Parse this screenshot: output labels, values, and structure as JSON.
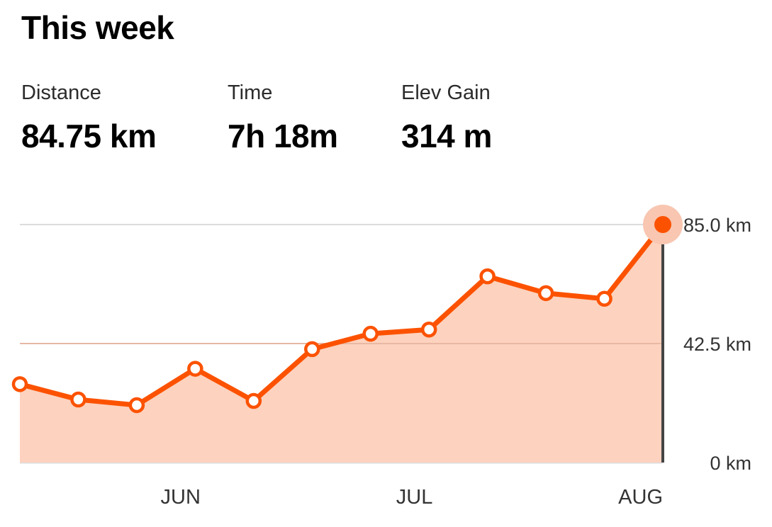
{
  "header": {
    "title": "This week"
  },
  "stats": [
    {
      "label": "Distance",
      "value": "84.75 km"
    },
    {
      "label": "Time",
      "value": "7h 18m"
    },
    {
      "label": "Elev Gain",
      "value": "314 m"
    }
  ],
  "colors": {
    "line": "#fc5200",
    "area": "#fdd2bf",
    "highlight_halo": "#f8c6b1",
    "grid": "#dcdcdc",
    "cursor": "#444444",
    "axis_text": "#333333"
  },
  "chart_data": {
    "type": "area",
    "title": "",
    "xlabel": "",
    "ylabel": "",
    "x_tick_labels": [
      "JUN",
      "JUL",
      "AUG"
    ],
    "y_tick_labels": [
      "85.0 km",
      "42.5 km",
      "0 km"
    ],
    "y_ticks": [
      85,
      42.5,
      0
    ],
    "ylim": [
      0,
      85
    ],
    "grid": true,
    "series": [
      {
        "values": [
          28,
          22.5,
          20.5,
          33.5,
          22,
          40.5,
          46,
          47.5,
          66.5,
          60.5,
          58.5,
          85
        ]
      }
    ],
    "highlighted_index": 11
  }
}
